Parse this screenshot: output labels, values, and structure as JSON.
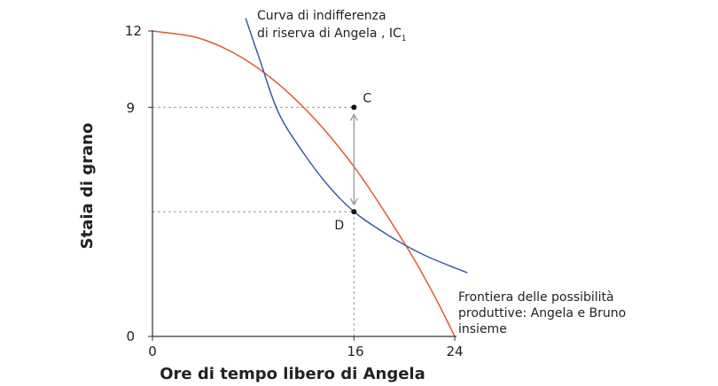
{
  "chart_data": {
    "type": "line",
    "xlabel": "Ore di tempo libero di Angela",
    "ylabel": "Staia di grano",
    "xlim": [
      0,
      24
    ],
    "ylim": [
      0,
      12
    ],
    "x_ticks": [
      "0",
      "16",
      "24"
    ],
    "y_ticks": [
      "0",
      "9",
      "12"
    ],
    "x_tick_values": [
      0,
      16,
      24
    ],
    "y_tick_values": [
      0,
      9,
      12
    ],
    "grid": false,
    "series": [
      {
        "name": "Frontiera delle possibilità produttive: Angela e Bruno insieme",
        "color": "#e05a2b",
        "x": [
          0,
          4,
          8,
          12,
          16,
          20,
          22,
          23,
          24
        ],
        "y": [
          12,
          11.67,
          10.67,
          9.0,
          6.67,
          3.67,
          1.95,
          1.0,
          0
        ]
      },
      {
        "name": "Curva di indifferenza di riserva di Angela , IC1",
        "color": "#3b5ba5",
        "x": [
          7.4,
          8.5,
          10,
          12,
          14,
          16,
          18,
          20,
          22,
          25
        ],
        "y": [
          12.5,
          10.9,
          8.8,
          7.2,
          5.9,
          4.9,
          4.2,
          3.6,
          3.1,
          2.5
        ]
      }
    ],
    "points": [
      {
        "label": "C",
        "x": 16,
        "y": 9
      },
      {
        "label": "D",
        "x": 16,
        "y": 4.9
      }
    ],
    "annotations": {
      "ic_line1": "Curva di indifferenza",
      "ic_line2_main": "di riserva di Angela , IC",
      "ic_line2_sub": "1",
      "ppf_line1": "Frontiera delle possibilità",
      "ppf_line2": "produttive: Angela e Bruno",
      "ppf_line3": "insieme"
    },
    "colors": {
      "ppf": "#e05a2b",
      "indifference": "#3b5ba5",
      "axis": "#333333",
      "dashed": "#999999",
      "arrow": "#999999"
    }
  }
}
